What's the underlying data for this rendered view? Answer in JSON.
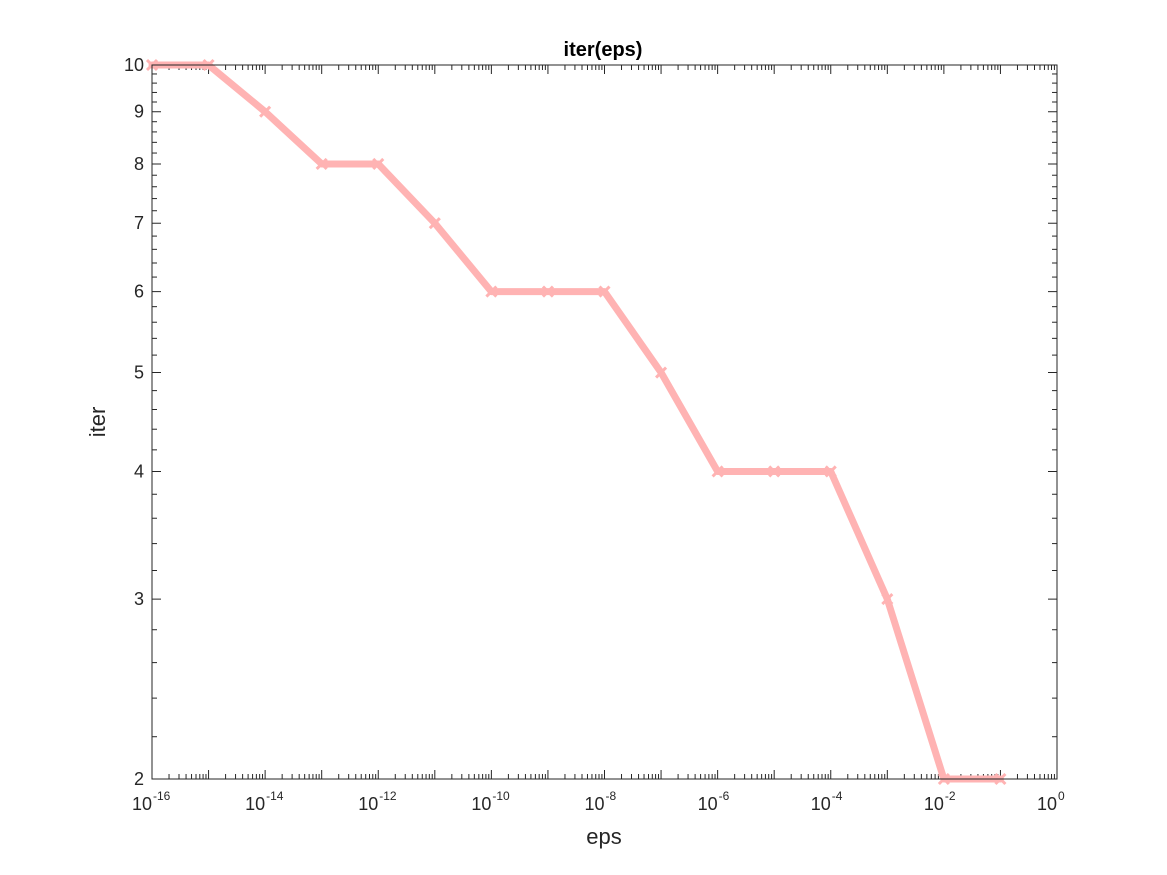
{
  "chart_data": {
    "type": "line",
    "title": "iter(eps)",
    "xlabel": "eps",
    "ylabel": "iter",
    "xscale": "log",
    "yscale": "log",
    "xlim": [
      1e-16,
      1
    ],
    "ylim": [
      2,
      10
    ],
    "grid": false,
    "legend": "none",
    "x_tick_base": "10",
    "x_tick_exponents": [
      "-16",
      "-14",
      "-12",
      "-10",
      "-8",
      "-6",
      "-4",
      "-2",
      "0"
    ],
    "y_ticks": [
      "2",
      "3",
      "4",
      "5",
      "6",
      "7",
      "8",
      "9",
      "10"
    ],
    "series": [
      {
        "color": "#ffb3b3",
        "marker": "x",
        "x": [
          1e-16,
          1e-15,
          1e-14,
          1e-13,
          1e-12,
          1e-11,
          1e-10,
          1e-09,
          1e-08,
          1e-07,
          1e-06,
          1e-05,
          0.0001,
          0.001,
          0.01,
          0.1
        ],
        "y": [
          10,
          10,
          9,
          8,
          8,
          7,
          6,
          6,
          6,
          5,
          4,
          4,
          4,
          3,
          2,
          2
        ]
      }
    ]
  }
}
